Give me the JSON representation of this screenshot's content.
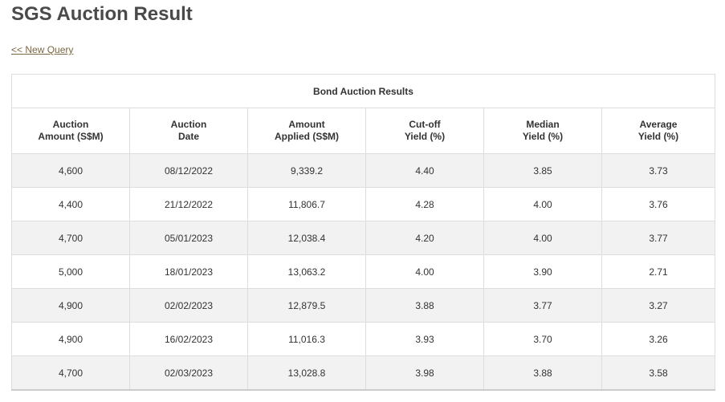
{
  "page": {
    "title": "SGS Auction Result",
    "new_query_label": "<< New Query"
  },
  "table": {
    "caption": "Bond Auction Results",
    "columns": [
      {
        "line1": "Auction",
        "line2": "Amount (S$M)"
      },
      {
        "line1": "Auction",
        "line2": "Date"
      },
      {
        "line1": "Amount",
        "line2": "Applied (S$M)"
      },
      {
        "line1": "Cut-off",
        "line2": "Yield (%)"
      },
      {
        "line1": "Median",
        "line2": "Yield (%)"
      },
      {
        "line1": "Average",
        "line2": "Yield (%)"
      }
    ],
    "rows": [
      [
        "4,600",
        "08/12/2022",
        "9,339.2",
        "4.40",
        "3.85",
        "3.73"
      ],
      [
        "4,400",
        "21/12/2022",
        "11,806.7",
        "4.28",
        "4.00",
        "3.76"
      ],
      [
        "4,700",
        "05/01/2023",
        "12,038.4",
        "4.20",
        "4.00",
        "3.77"
      ],
      [
        "5,000",
        "18/01/2023",
        "13,063.2",
        "4.00",
        "3.90",
        "2.71"
      ],
      [
        "4,900",
        "02/02/2023",
        "12,879.5",
        "3.88",
        "3.77",
        "3.27"
      ],
      [
        "4,900",
        "16/02/2023",
        "11,016.3",
        "3.93",
        "3.70",
        "3.26"
      ],
      [
        "4,700",
        "02/03/2023",
        "13,028.8",
        "3.98",
        "3.88",
        "3.58"
      ]
    ]
  }
}
